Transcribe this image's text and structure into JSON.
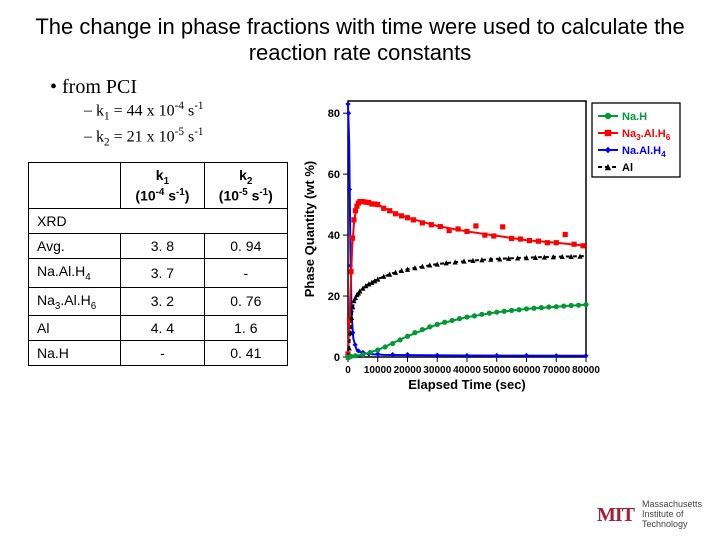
{
  "title": "The change in phase fractions with time were used to calculate the reaction rate constants",
  "bullets": {
    "b1": "from PCI",
    "b2a_html": "k<sub>1</sub> = 44 x 10<sup>-4</sup> s<sup>-1</sup>",
    "b2b_html": "k<sub>2</sub> = 21 x 10<sup>-5</sup> s<sup>-1</sup>"
  },
  "table": {
    "h1_html": "k<sub>1</sub><br>(10<sup>-4</sup> s<sup>-1</sup>)",
    "h2_html": "k<sub>2</sub><br>(10<sup>-5</sup> s<sup>-1</sup>)",
    "rows": [
      {
        "label": "XRD",
        "k1": "",
        "k2": "",
        "span": true
      },
      {
        "label": "Avg.",
        "k1": "3. 8",
        "k2": "0. 94"
      },
      {
        "label_html": "Na.Al.H<sub>4</sub>",
        "k1": "3. 7",
        "k2": "-"
      },
      {
        "label_html": "Na<sub>3</sub>.Al.H<sub>6</sub>",
        "k1": "3. 2",
        "k2": "0. 76"
      },
      {
        "label": "Al",
        "k1": "4. 4",
        "k2": "1. 6"
      },
      {
        "label": "Na.H",
        "k1": "-",
        "k2": "0. 41"
      }
    ]
  },
  "chart": {
    "type": "scatter+line",
    "xlabel": "Elapsed Time (sec)",
    "ylabel": "Phase Quantity (wt %)",
    "xlim": [
      0,
      80000
    ],
    "xticks": [
      0,
      10000,
      20000,
      30000,
      40000,
      50000,
      60000,
      70000,
      80000
    ],
    "ylim": [
      0,
      84
    ],
    "yticks": [
      0,
      20,
      40,
      60,
      80
    ],
    "bg": "#ffffff",
    "legend": {
      "border": "#000000",
      "items": [
        {
          "label": "Na.H",
          "color": "#009933",
          "marker": "circle"
        },
        {
          "label_html": "Na<tspan baseline-shift='-3' font-size='0.75em'>3</tspan>.Al.H<tspan baseline-shift='-3' font-size='0.75em'>6</tspan>",
          "color": "#ff0000",
          "marker": "square"
        },
        {
          "label_html": "Na.Al.H<tspan baseline-shift='-3' font-size='0.75em'>4</tspan>",
          "color": "#0000ff",
          "marker": "diamond"
        },
        {
          "label": "Al",
          "color": "#000000",
          "marker": "triangle",
          "dash": "4,3"
        }
      ]
    },
    "series": {
      "NaAlH4": {
        "color": "#0000ff",
        "marker": "diamond",
        "points": [
          [
            0,
            83
          ],
          [
            200,
            80
          ],
          [
            500,
            55
          ],
          [
            800,
            30
          ],
          [
            1100,
            15
          ],
          [
            1600,
            8
          ],
          [
            2400,
            4
          ],
          [
            3500,
            2
          ],
          [
            5000,
            1.5
          ],
          [
            7000,
            1
          ],
          [
            10000,
            1
          ],
          [
            15000,
            0.8
          ],
          [
            20000,
            0.8
          ],
          [
            30000,
            0.6
          ],
          [
            40000,
            0.5
          ],
          [
            50000,
            0.5
          ],
          [
            60000,
            0.5
          ],
          [
            70000,
            0.4
          ],
          [
            80000,
            0.4
          ]
        ],
        "line": [
          [
            0,
            83
          ],
          [
            400,
            70
          ],
          [
            800,
            36
          ],
          [
            1200,
            14
          ],
          [
            1800,
            6
          ],
          [
            3000,
            2
          ],
          [
            5000,
            1.3
          ],
          [
            8000,
            0.9
          ],
          [
            12000,
            0.7
          ],
          [
            20000,
            0.6
          ],
          [
            40000,
            0.5
          ],
          [
            80000,
            0.4
          ]
        ]
      },
      "Na3AlH6": {
        "color": "#ff0000",
        "marker": "square",
        "points": [
          [
            0,
            1
          ],
          [
            500,
            12
          ],
          [
            1000,
            28
          ],
          [
            1500,
            39
          ],
          [
            2000,
            45
          ],
          [
            2500,
            48
          ],
          [
            3000,
            49.5
          ],
          [
            3500,
            50.5
          ],
          [
            4000,
            51
          ],
          [
            5000,
            51
          ],
          [
            6000,
            50.8
          ],
          [
            7000,
            50.7
          ],
          [
            8000,
            50.2
          ],
          [
            9000,
            50.2
          ],
          [
            10000,
            50
          ],
          [
            12000,
            48.8
          ],
          [
            14000,
            48
          ],
          [
            16000,
            47
          ],
          [
            18000,
            46.3
          ],
          [
            20000,
            45.7
          ],
          [
            22000,
            45
          ],
          [
            25000,
            44
          ],
          [
            28000,
            43.4
          ],
          [
            31000,
            42.8
          ],
          [
            34000,
            41.5
          ],
          [
            37000,
            42
          ],
          [
            40000,
            41.2
          ],
          [
            43000,
            43
          ],
          [
            46000,
            40
          ],
          [
            49000,
            39.7
          ],
          [
            52000,
            42.7
          ],
          [
            55000,
            38.9
          ],
          [
            58000,
            38.7
          ],
          [
            61000,
            38.2
          ],
          [
            64000,
            38
          ],
          [
            67000,
            37.5
          ],
          [
            70000,
            37.5
          ],
          [
            73000,
            40.2
          ],
          [
            76000,
            37
          ],
          [
            79000,
            36.5
          ]
        ],
        "line": [
          [
            0,
            1
          ],
          [
            700,
            18
          ],
          [
            1400,
            36
          ],
          [
            2100,
            45
          ],
          [
            3000,
            49.5
          ],
          [
            4500,
            51
          ],
          [
            7000,
            50.5
          ],
          [
            10000,
            50
          ],
          [
            15000,
            47.5
          ],
          [
            20000,
            45.7
          ],
          [
            30000,
            43
          ],
          [
            40000,
            41.2
          ],
          [
            50000,
            39.8
          ],
          [
            60000,
            38.3
          ],
          [
            70000,
            37.5
          ],
          [
            80000,
            36.5
          ]
        ]
      },
      "NaH": {
        "color": "#009933",
        "marker": "circle",
        "points": [
          [
            0,
            0
          ],
          [
            1000,
            0.2
          ],
          [
            2500,
            0.4
          ],
          [
            5000,
            0.8
          ],
          [
            7500,
            1.5
          ],
          [
            10000,
            2.3
          ],
          [
            12500,
            3.3
          ],
          [
            15000,
            4.4
          ],
          [
            17500,
            5.6
          ],
          [
            20000,
            6.8
          ],
          [
            22500,
            8
          ],
          [
            25000,
            9
          ],
          [
            27500,
            9.9
          ],
          [
            30000,
            10.7
          ],
          [
            32500,
            11.4
          ],
          [
            35000,
            12
          ],
          [
            37500,
            12.6
          ],
          [
            40000,
            13.1
          ],
          [
            42500,
            13.5
          ],
          [
            45000,
            14
          ],
          [
            47500,
            14.4
          ],
          [
            50000,
            14.7
          ],
          [
            52500,
            15
          ],
          [
            55000,
            15.3
          ],
          [
            57500,
            15.5
          ],
          [
            60000,
            15.8
          ],
          [
            62500,
            16
          ],
          [
            65000,
            16.2
          ],
          [
            67500,
            16.4
          ],
          [
            70000,
            16.5
          ],
          [
            72500,
            16.7
          ],
          [
            75000,
            16.9
          ],
          [
            77500,
            17
          ],
          [
            80000,
            17.2
          ]
        ],
        "line": [
          [
            0,
            0
          ],
          [
            5000,
            0.8
          ],
          [
            10000,
            2.3
          ],
          [
            20000,
            6.8
          ],
          [
            30000,
            10.7
          ],
          [
            40000,
            13.1
          ],
          [
            50000,
            14.7
          ],
          [
            60000,
            15.8
          ],
          [
            70000,
            16.5
          ],
          [
            80000,
            17.2
          ]
        ]
      },
      "Al": {
        "color": "#000000",
        "marker": "triangle",
        "dash": "4,3",
        "points": [
          [
            0,
            0
          ],
          [
            400,
            3
          ],
          [
            800,
            8
          ],
          [
            1200,
            13
          ],
          [
            1600,
            16.5
          ],
          [
            2000,
            18.5
          ],
          [
            2500,
            19.5
          ],
          [
            3000,
            20.5
          ],
          [
            3500,
            21
          ],
          [
            4000,
            21.7
          ],
          [
            5000,
            22.6
          ],
          [
            6000,
            23.4
          ],
          [
            7000,
            24
          ],
          [
            8000,
            24.5
          ],
          [
            9000,
            25
          ],
          [
            10000,
            25.6
          ],
          [
            12000,
            26.5
          ],
          [
            14000,
            27.2
          ],
          [
            16000,
            27.8
          ],
          [
            18000,
            28.4
          ],
          [
            20000,
            28.8
          ],
          [
            22500,
            29.3
          ],
          [
            25000,
            29.8
          ],
          [
            27500,
            30.2
          ],
          [
            30000,
            30.5
          ],
          [
            33000,
            30.9
          ],
          [
            36000,
            31.2
          ],
          [
            39000,
            31.5
          ],
          [
            42000,
            31.7
          ],
          [
            45000,
            31.9
          ],
          [
            48000,
            32.1
          ],
          [
            51000,
            32.2
          ],
          [
            54000,
            32.4
          ],
          [
            57000,
            32.5
          ],
          [
            60000,
            32.6
          ],
          [
            63000,
            32.7
          ],
          [
            66000,
            32.8
          ],
          [
            69000,
            32.9
          ],
          [
            72000,
            33
          ],
          [
            75000,
            33
          ],
          [
            78000,
            33.1
          ]
        ],
        "line": [
          [
            0,
            0
          ],
          [
            700,
            7
          ],
          [
            1500,
            15.7
          ],
          [
            2500,
            19.5
          ],
          [
            4000,
            21.7
          ],
          [
            7000,
            24
          ],
          [
            10000,
            25.6
          ],
          [
            15000,
            27.5
          ],
          [
            20000,
            28.8
          ],
          [
            30000,
            30.5
          ],
          [
            40000,
            31.5
          ],
          [
            50000,
            32.2
          ],
          [
            60000,
            32.6
          ],
          [
            70000,
            32.9
          ],
          [
            80000,
            33.1
          ]
        ]
      }
    }
  },
  "footer": {
    "logo": "MIT",
    "line1": "Massachusetts",
    "line2": "Institute of",
    "line3": "Technology"
  }
}
